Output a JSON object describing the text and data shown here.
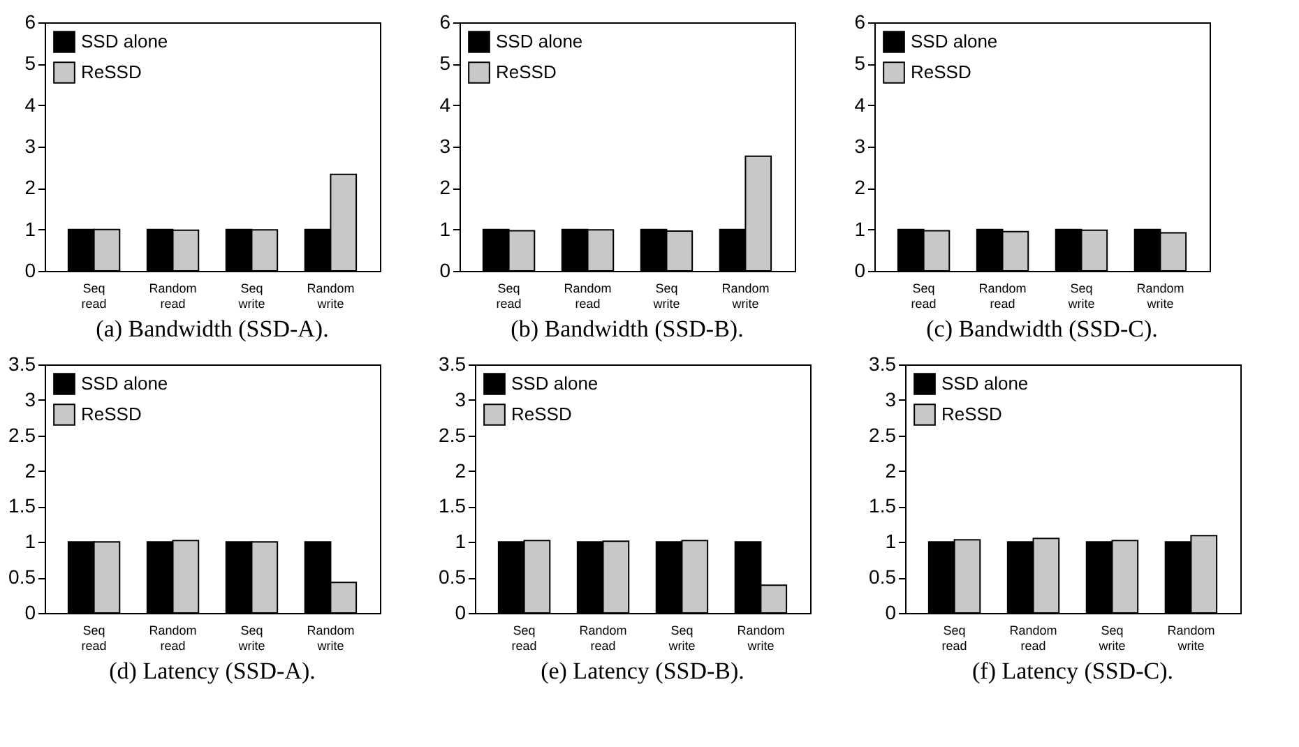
{
  "chart_data": [
    {
      "type": "bar",
      "title": "(a) Bandwidth (SSD-A).",
      "categories": [
        "Seq read",
        "Random read",
        "Seq write",
        "Random write"
      ],
      "ylim": [
        0,
        6
      ],
      "yticks": [
        0,
        1,
        2,
        3,
        4,
        5,
        6
      ],
      "legend": "top left",
      "series": [
        {
          "name": "SSD alone",
          "color": "#000000",
          "values": [
            1,
            1,
            1,
            1
          ]
        },
        {
          "name": "ReSSD",
          "color": "#c8c8c8",
          "values": [
            1.0,
            0.98,
            0.99,
            2.33
          ]
        }
      ]
    },
    {
      "type": "bar",
      "title": "(b) Bandwidth (SSD-B).",
      "categories": [
        "Seq read",
        "Random read",
        "Seq write",
        "Random write"
      ],
      "ylim": [
        0,
        6
      ],
      "yticks": [
        0,
        1,
        2,
        3,
        4,
        5,
        6
      ],
      "legend": "top left",
      "series": [
        {
          "name": "SSD alone",
          "color": "#000000",
          "values": [
            1,
            1,
            1,
            1
          ]
        },
        {
          "name": "ReSSD",
          "color": "#c8c8c8",
          "values": [
            0.97,
            0.99,
            0.96,
            2.77
          ]
        }
      ]
    },
    {
      "type": "bar",
      "title": "(c) Bandwidth (SSD-C).",
      "categories": [
        "Seq read",
        "Random read",
        "Seq write",
        "Random write"
      ],
      "ylim": [
        0,
        6
      ],
      "yticks": [
        0,
        1,
        2,
        3,
        4,
        5,
        6
      ],
      "legend": "top left",
      "series": [
        {
          "name": "SSD alone",
          "color": "#000000",
          "values": [
            1,
            1,
            1,
            1
          ]
        },
        {
          "name": "ReSSD",
          "color": "#c8c8c8",
          "values": [
            0.97,
            0.95,
            0.98,
            0.92
          ]
        }
      ]
    },
    {
      "type": "bar",
      "title": "(d) Latency (SSD-A).",
      "categories": [
        "Seq read",
        "Random read",
        "Seq write",
        "Random write"
      ],
      "ylim": [
        0,
        3.5
      ],
      "yticks": [
        0,
        0.5,
        1,
        1.5,
        2,
        2.5,
        3,
        3.5
      ],
      "legend": "top left",
      "series": [
        {
          "name": "SSD alone",
          "color": "#000000",
          "values": [
            1,
            1,
            1,
            1
          ]
        },
        {
          "name": "ReSSD",
          "color": "#c8c8c8",
          "values": [
            1.0,
            1.02,
            1.0,
            0.43
          ]
        }
      ]
    },
    {
      "type": "bar",
      "title": "(e) Latency (SSD-B).",
      "categories": [
        "Seq read",
        "Random read",
        "Seq write",
        "Random write"
      ],
      "ylim": [
        0,
        3.5
      ],
      "yticks": [
        0,
        0.5,
        1,
        1.5,
        2,
        2.5,
        3,
        3.5
      ],
      "legend": "top left",
      "series": [
        {
          "name": "SSD alone",
          "color": "#000000",
          "values": [
            1,
            1,
            1,
            1
          ]
        },
        {
          "name": "ReSSD",
          "color": "#c8c8c8",
          "values": [
            1.02,
            1.01,
            1.02,
            0.39
          ]
        }
      ]
    },
    {
      "type": "bar",
      "title": "(f) Latency (SSD-C).",
      "categories": [
        "Seq read",
        "Random read",
        "Seq write",
        "Random write"
      ],
      "ylim": [
        0,
        3.5
      ],
      "yticks": [
        0,
        0.5,
        1,
        1.5,
        2,
        2.5,
        3,
        3.5
      ],
      "legend": "top left",
      "series": [
        {
          "name": "SSD alone",
          "color": "#000000",
          "values": [
            1,
            1,
            1,
            1
          ]
        },
        {
          "name": "ReSSD",
          "color": "#c8c8c8",
          "values": [
            1.03,
            1.05,
            1.02,
            1.09
          ]
        }
      ]
    }
  ]
}
